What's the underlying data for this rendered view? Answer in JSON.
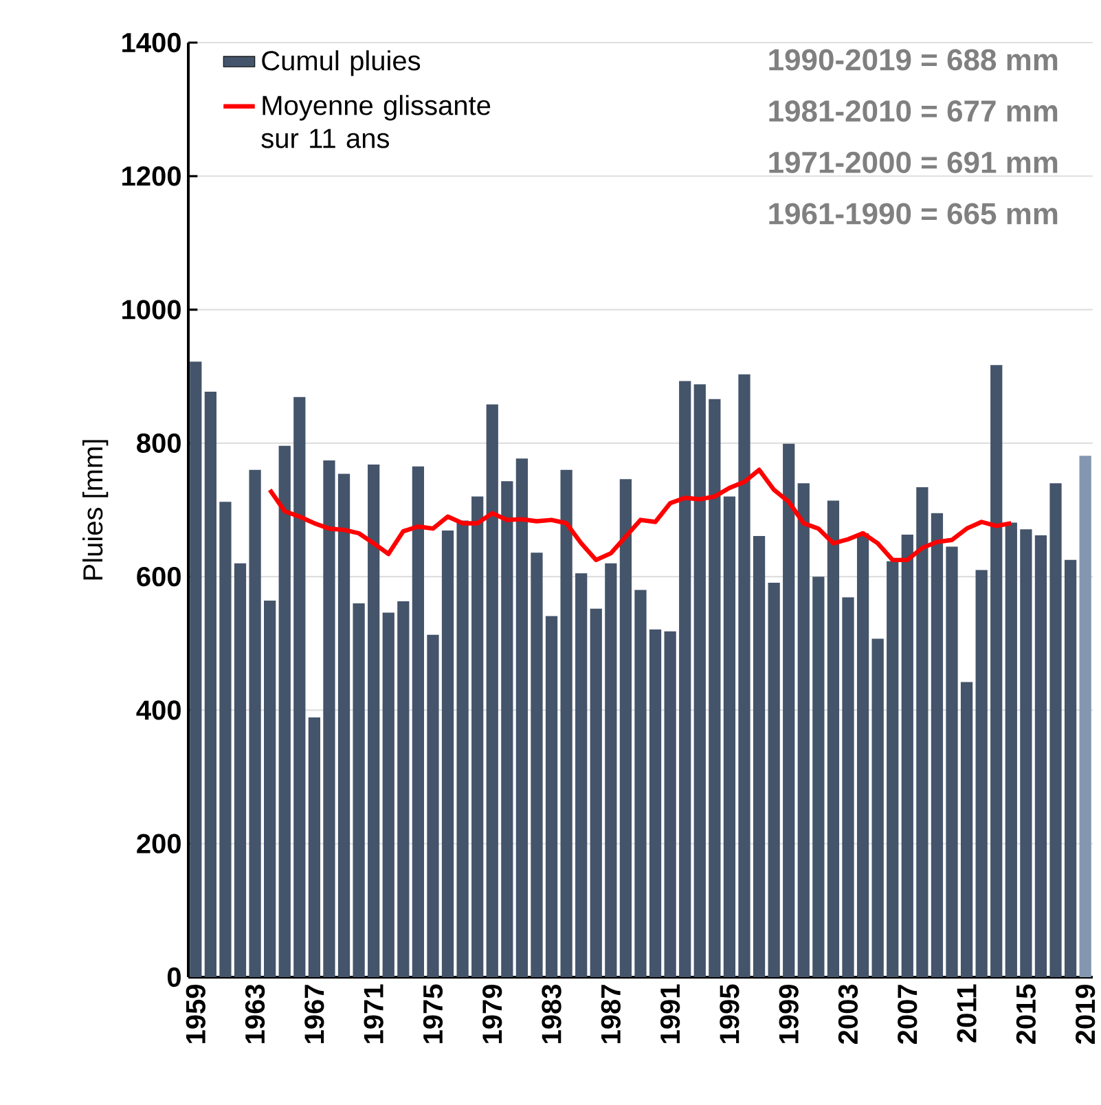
{
  "chart_data": {
    "type": "bar",
    "categories": [
      "1959",
      null,
      null,
      null,
      "1963",
      null,
      null,
      null,
      "1967",
      null,
      null,
      null,
      "1971",
      null,
      null,
      null,
      "1975",
      null,
      null,
      null,
      "1979",
      null,
      null,
      null,
      "1983",
      null,
      null,
      null,
      "1987",
      null,
      null,
      null,
      "1991",
      null,
      null,
      null,
      "1995",
      null,
      null,
      null,
      "1999",
      null,
      null,
      null,
      "2003",
      null,
      null,
      null,
      "2007",
      null,
      null,
      null,
      "2011",
      null,
      null,
      null,
      "2015",
      null,
      null,
      null,
      "2019"
    ],
    "series": [
      {
        "name": "Cumul pluies",
        "colors": [
          "#44546a",
          "#44546a",
          "#44546a",
          "#44546a",
          "#44546a",
          "#44546a",
          "#44546a",
          "#44546a",
          "#44546a",
          "#44546a",
          "#44546a",
          "#44546a",
          "#44546a",
          "#44546a",
          "#44546a",
          "#44546a",
          "#44546a",
          "#44546a",
          "#44546a",
          "#44546a",
          "#44546a",
          "#44546a",
          "#44546a",
          "#44546a",
          "#44546a",
          "#44546a",
          "#44546a",
          "#44546a",
          "#44546a",
          "#44546a",
          "#44546a",
          "#44546a",
          "#44546a",
          "#44546a",
          "#44546a",
          "#44546a",
          "#44546a",
          "#44546a",
          "#44546a",
          "#44546a",
          "#44546a",
          "#44546a",
          "#44546a",
          "#44546a",
          "#44546a",
          "#44546a",
          "#44546a",
          "#44546a",
          "#44546a",
          "#44546a",
          "#44546a",
          "#44546a",
          "#44546a",
          "#44546a",
          "#44546a",
          "#44546a",
          "#44546a",
          "#44546a",
          "#44546a",
          "#44546a",
          "#8497b0"
        ],
        "values": [
          922,
          877,
          712,
          620,
          760,
          564,
          796,
          869,
          389,
          774,
          754,
          560,
          768,
          546,
          563,
          765,
          513,
          669,
          684,
          720,
          858,
          743,
          777,
          636,
          541,
          760,
          605,
          552,
          620,
          746,
          580,
          521,
          518,
          893,
          888,
          866,
          720,
          903,
          661,
          591,
          799,
          740,
          600,
          714,
          569,
          665,
          507,
          623,
          663,
          734,
          695,
          645,
          442,
          610,
          917,
          681,
          671,
          662,
          740,
          625,
          781
        ]
      },
      {
        "name": "Moyenne glissante sur 11 ans",
        "type": "line",
        "color": "#ff0000",
        "values": [
          null,
          null,
          null,
          null,
          null,
          730,
          698,
          690,
          680,
          672,
          670,
          665,
          650,
          634,
          668,
          675,
          672,
          690,
          680,
          680,
          695,
          685,
          686,
          683,
          685,
          680,
          650,
          625,
          635,
          660,
          685,
          682,
          710,
          718,
          716,
          720,
          733,
          742,
          760,
          730,
          712,
          680,
          672,
          650,
          656,
          665,
          650,
          625,
          625,
          643,
          652,
          655,
          672,
          682,
          676,
          680,
          null,
          null,
          null,
          null,
          null
        ]
      }
    ],
    "ylabel": "Pluies [mm]",
    "ylim": [
      0,
      1400
    ],
    "yticks": [
      0,
      200,
      400,
      600,
      800,
      1000,
      1200,
      1400
    ],
    "grid": "y",
    "legend": "top left",
    "marker": "none",
    "line_style": "solid",
    "annotations": [
      "1990-2019 = 688 mm",
      "1981-2010 = 677 mm",
      "1971-2000 = 691 mm",
      "1961-1990 = 665 mm"
    ]
  }
}
